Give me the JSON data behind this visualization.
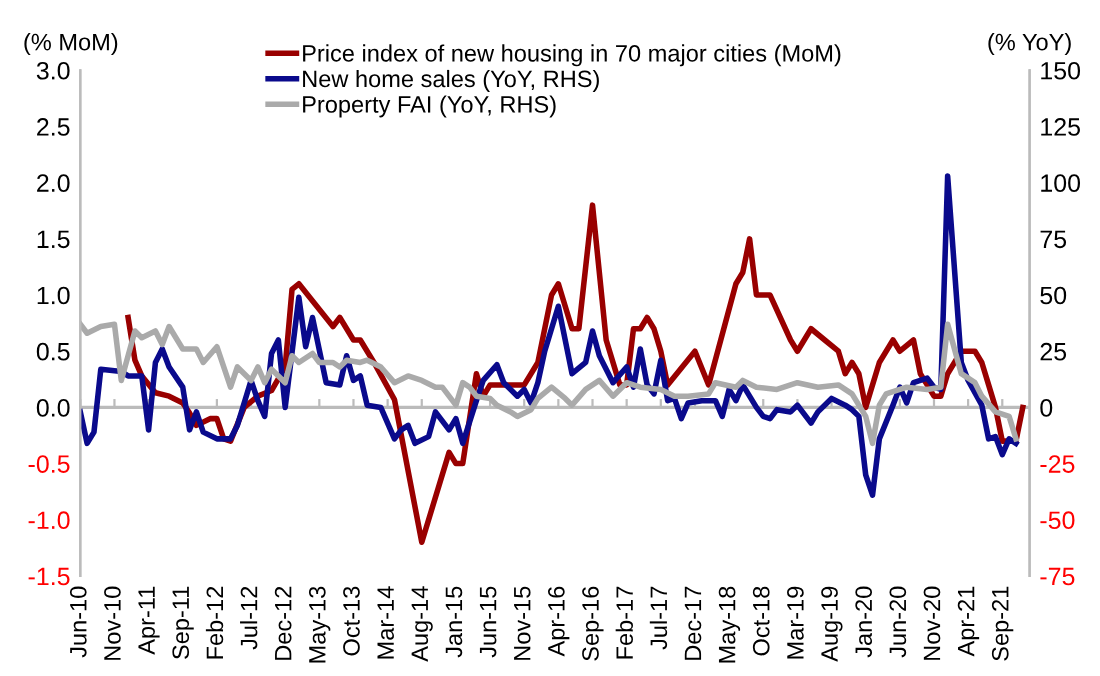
{
  "chart_data": {
    "type": "line",
    "ylabel": "(% MoM)",
    "y2label": "(% YoY)",
    "legend": "top",
    "ref_lines": [
      {
        "axis": "y",
        "value": 0,
        "color": "#bbbbbb"
      }
    ],
    "xlim": [
      "2010-06",
      "2022-01"
    ],
    "xticks": [
      {
        "value": "2010-06",
        "label": "Jun-10"
      },
      {
        "value": "2010-11",
        "label": "Nov-10"
      },
      {
        "value": "2011-04",
        "label": "Apr-11"
      },
      {
        "value": "2011-09",
        "label": "Sep-11"
      },
      {
        "value": "2012-02",
        "label": "Feb-12"
      },
      {
        "value": "2012-07",
        "label": "Jul-12"
      },
      {
        "value": "2012-12",
        "label": "Dec-12"
      },
      {
        "value": "2013-05",
        "label": "May-13"
      },
      {
        "value": "2013-10",
        "label": "Oct-13"
      },
      {
        "value": "2014-03",
        "label": "Mar-14"
      },
      {
        "value": "2014-08",
        "label": "Aug-14"
      },
      {
        "value": "2015-01",
        "label": "Jan-15"
      },
      {
        "value": "2015-06",
        "label": "Jun-15"
      },
      {
        "value": "2015-11",
        "label": "Nov-15"
      },
      {
        "value": "2016-04",
        "label": "Apr-16"
      },
      {
        "value": "2016-09",
        "label": "Sep-16"
      },
      {
        "value": "2017-02",
        "label": "Feb-17"
      },
      {
        "value": "2017-07",
        "label": "Jul-17"
      },
      {
        "value": "2017-12",
        "label": "Dec-17"
      },
      {
        "value": "2018-05",
        "label": "May-18"
      },
      {
        "value": "2018-10",
        "label": "Oct-18"
      },
      {
        "value": "2019-03",
        "label": "Mar-19"
      },
      {
        "value": "2019-08",
        "label": "Aug-19"
      },
      {
        "value": "2020-01",
        "label": "Jan-20"
      },
      {
        "value": "2020-06",
        "label": "Jun-20"
      },
      {
        "value": "2020-11",
        "label": "Nov-20"
      },
      {
        "value": "2021-04",
        "label": "Apr-21"
      },
      {
        "value": "2021-09",
        "label": "Sep-21"
      }
    ],
    "ylim": [
      -1.5,
      3.0
    ],
    "yticks": [
      {
        "value": -1.5,
        "label": "-1.5"
      },
      {
        "value": -1.0,
        "label": "-1.0"
      },
      {
        "value": -0.5,
        "label": "-0.5"
      },
      {
        "value": 0,
        "label": "0.0"
      },
      {
        "value": 0.5,
        "label": "0.5"
      },
      {
        "value": 1.0,
        "label": "1.0"
      },
      {
        "value": 1.5,
        "label": "1.5"
      },
      {
        "value": 2.0,
        "label": "2.0"
      },
      {
        "value": 2.5,
        "label": "2.5"
      },
      {
        "value": 3.0,
        "label": "3.0"
      }
    ],
    "y2lim": [
      -75,
      150
    ],
    "y2ticks": [
      -75,
      -50,
      -25,
      0,
      25,
      50,
      75,
      100,
      125,
      150
    ],
    "series": [
      {
        "name": "Price index of new housing in 70 major cities (MoM)",
        "color": "#990000",
        "x": [
          "2011-01",
          "2011-02",
          "2011-03",
          "2011-05",
          "2011-07",
          "2011-09",
          "2011-10",
          "2011-11",
          "2012-01",
          "2012-02",
          "2012-03",
          "2012-04",
          "2012-06",
          "2012-08",
          "2012-10",
          "2012-12",
          "2013-01",
          "2013-02",
          "2013-07",
          "2013-08",
          "2013-10",
          "2013-11",
          "2014-01",
          "2014-04",
          "2014-08",
          "2014-12",
          "2015-01",
          "2015-02",
          "2015-04",
          "2015-05",
          "2015-06",
          "2015-11",
          "2016-01",
          "2016-03",
          "2016-04",
          "2016-05",
          "2016-06",
          "2016-07",
          "2016-09",
          "2016-11",
          "2017-01",
          "2017-02",
          "2017-03",
          "2017-04",
          "2017-05",
          "2017-06",
          "2017-07",
          "2017-08",
          "2017-12",
          "2018-02",
          "2018-06",
          "2018-07",
          "2018-08",
          "2018-09",
          "2018-11",
          "2019-02",
          "2019-03",
          "2019-04",
          "2019-05",
          "2019-07",
          "2019-09",
          "2019-10",
          "2019-11",
          "2019-12",
          "2020-01",
          "2020-03",
          "2020-05",
          "2020-06",
          "2020-08",
          "2020-09",
          "2020-10",
          "2020-11",
          "2020-12",
          "2021-01",
          "2021-02",
          "2021-03",
          "2021-05",
          "2021-06",
          "2021-07",
          "2021-08",
          "2021-09",
          "2021-11",
          "2021-12"
        ],
        "values": [
          0.8,
          0.42,
          0.28,
          0.13,
          0.1,
          0.04,
          -0.05,
          -0.16,
          -0.1,
          -0.1,
          -0.28,
          -0.3,
          0.0,
          0.1,
          0.15,
          0.36,
          1.05,
          1.1,
          0.72,
          0.8,
          0.6,
          0.6,
          0.4,
          0.07,
          -1.2,
          -0.4,
          -0.5,
          -0.5,
          0.3,
          0.1,
          0.2,
          0.2,
          0.4,
          1.0,
          1.1,
          0.9,
          0.7,
          0.7,
          1.8,
          0.6,
          0.2,
          0.2,
          0.7,
          0.7,
          0.8,
          0.7,
          0.5,
          0.2,
          0.5,
          0.2,
          1.1,
          1.2,
          1.5,
          1.0,
          1.0,
          0.6,
          0.5,
          0.6,
          0.7,
          0.6,
          0.5,
          0.3,
          0.4,
          0.3,
          0.0,
          0.4,
          0.6,
          0.5,
          0.6,
          0.3,
          0.2,
          0.1,
          0.1,
          0.3,
          0.4,
          0.5,
          0.5,
          0.4,
          0.2,
          0.0,
          -0.3,
          -0.3,
          0.0
        ]
      },
      {
        "name": "New home sales (YoY, RHS)",
        "color": "#0a0a8c",
        "axis": "y2",
        "x": [
          "2010-06",
          "2010-07",
          "2010-08",
          "2010-09",
          "2010-12",
          "2011-01",
          "2011-03",
          "2011-04",
          "2011-05",
          "2011-06",
          "2011-07",
          "2011-09",
          "2011-10",
          "2011-11",
          "2011-12",
          "2012-02",
          "2012-04",
          "2012-05",
          "2012-07",
          "2012-08",
          "2012-09",
          "2012-10",
          "2012-11",
          "2012-12",
          "2013-02",
          "2013-03",
          "2013-04",
          "2013-06",
          "2013-08",
          "2013-09",
          "2013-10",
          "2013-11",
          "2013-12",
          "2014-02",
          "2014-04",
          "2014-05",
          "2014-06",
          "2014-07",
          "2014-09",
          "2014-10",
          "2014-12",
          "2015-01",
          "2015-02",
          "2015-04",
          "2015-05",
          "2015-07",
          "2015-08",
          "2015-10",
          "2015-11",
          "2015-12",
          "2016-01",
          "2016-02",
          "2016-04",
          "2016-05",
          "2016-06",
          "2016-08",
          "2016-09",
          "2016-10",
          "2016-12",
          "2017-02",
          "2017-03",
          "2017-04",
          "2017-05",
          "2017-06",
          "2017-07",
          "2017-08",
          "2017-09",
          "2017-10",
          "2017-11",
          "2018-01",
          "2018-03",
          "2018-04",
          "2018-05",
          "2018-06",
          "2018-07",
          "2018-09",
          "2018-10",
          "2018-11",
          "2018-12",
          "2019-02",
          "2019-03",
          "2019-05",
          "2019-06",
          "2019-08",
          "2019-10",
          "2019-11",
          "2019-12",
          "2020-01",
          "2020-02",
          "2020-03",
          "2020-05",
          "2020-06",
          "2020-07",
          "2020-08",
          "2020-09",
          "2020-10",
          "2020-11",
          "2020-12",
          "2021-01",
          "2021-03",
          "2021-04",
          "2021-06",
          "2021-07",
          "2021-08",
          "2021-09",
          "2021-10",
          "2021-11"
        ],
        "values": [
          -2,
          -16,
          -11,
          17,
          16,
          14,
          14,
          -10,
          20,
          26,
          18,
          9,
          -10,
          -2,
          -11,
          -14,
          -14,
          -8,
          12,
          3,
          -4,
          24,
          30,
          0,
          49,
          27,
          40,
          11,
          10,
          23,
          12,
          14,
          1,
          0,
          -14,
          -10,
          -8,
          -16,
          -13,
          -2,
          -10,
          -5,
          -16,
          3,
          12,
          19,
          11,
          5,
          8,
          2,
          11,
          25,
          45,
          30,
          15,
          20,
          34,
          23,
          11,
          18,
          9,
          26,
          10,
          6,
          21,
          3,
          4,
          -5,
          2,
          3,
          3,
          -4,
          8,
          3,
          10,
          0,
          -4,
          -5,
          -1,
          -2,
          1,
          -7,
          -2,
          4,
          1,
          -1,
          -4,
          -30,
          -39,
          -14,
          1,
          9,
          2,
          11,
          12,
          13,
          9,
          8,
          103,
          20,
          12,
          1,
          -14,
          -13,
          -21,
          -14,
          -16
        ]
      },
      {
        "name": "Property FAI (YoY, RHS)",
        "color": "#aaaaaa",
        "axis": "y2",
        "x": [
          "2010-06",
          "2010-07",
          "2010-09",
          "2010-11",
          "2010-12",
          "2011-02",
          "2011-03",
          "2011-05",
          "2011-06",
          "2011-07",
          "2011-09",
          "2011-11",
          "2011-12",
          "2012-02",
          "2012-04",
          "2012-05",
          "2012-07",
          "2012-08",
          "2012-09",
          "2012-10",
          "2012-12",
          "2013-01",
          "2013-02",
          "2013-04",
          "2013-05",
          "2013-07",
          "2013-08",
          "2013-09",
          "2013-11",
          "2013-12",
          "2014-02",
          "2014-04",
          "2014-06",
          "2014-08",
          "2014-10",
          "2014-11",
          "2015-01",
          "2015-02",
          "2015-03",
          "2015-04",
          "2015-06",
          "2015-07",
          "2015-09",
          "2015-10",
          "2015-12",
          "2016-01",
          "2016-03",
          "2016-05",
          "2016-06",
          "2016-08",
          "2016-10",
          "2016-12",
          "2017-02",
          "2017-04",
          "2017-07",
          "2017-09",
          "2017-11",
          "2018-02",
          "2018-03",
          "2018-06",
          "2018-07",
          "2018-09",
          "2018-12",
          "2019-03",
          "2019-06",
          "2019-09",
          "2019-11",
          "2020-01",
          "2020-02",
          "2020-03",
          "2020-04",
          "2020-07",
          "2020-10",
          "2020-12",
          "2021-01",
          "2021-03",
          "2021-05",
          "2021-06",
          "2021-08",
          "2021-10",
          "2021-11"
        ],
        "values": [
          37,
          33,
          36,
          37,
          12,
          34,
          31,
          34,
          28,
          36,
          26,
          26,
          20,
          27,
          9,
          18,
          12,
          18,
          11,
          17,
          11,
          23,
          20,
          24,
          20,
          20,
          18,
          21,
          20,
          21,
          18,
          11,
          14,
          12,
          9,
          9,
          1,
          11,
          9,
          5,
          4,
          1,
          -2,
          -4,
          -1,
          4,
          9,
          4,
          1,
          8,
          12,
          5,
          11,
          9,
          8,
          5,
          5,
          6,
          11,
          9,
          12,
          9,
          8,
          11,
          9,
          10,
          6,
          -4,
          -16,
          1,
          6,
          9,
          8,
          9,
          37,
          15,
          11,
          5,
          -2,
          -4,
          -14
        ]
      }
    ]
  }
}
